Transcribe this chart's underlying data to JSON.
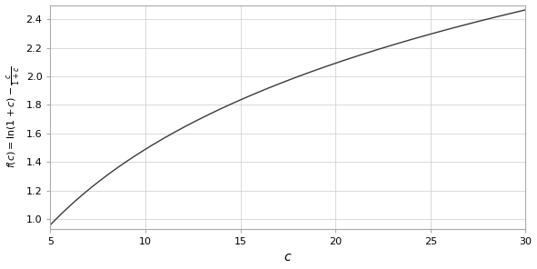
{
  "x_min": 5,
  "x_max": 30,
  "xlabel": "c",
  "line_color": "#3a3a3a",
  "line_width": 1.0,
  "xlim": [
    5,
    30
  ],
  "xticks": [
    5,
    10,
    15,
    20,
    25,
    30
  ],
  "yticks": [
    1.0,
    1.2,
    1.4,
    1.6,
    1.8,
    2.0,
    2.2,
    2.4
  ],
  "ylim": [
    0.93,
    2.5
  ],
  "grid_color": "#cccccc",
  "background_color": "#ffffff",
  "figsize": [
    5.91,
    2.96
  ],
  "dpi": 100,
  "spine_color": "#aaaaaa",
  "tick_label_size": 8,
  "xlabel_size": 10,
  "ylabel_size": 8
}
